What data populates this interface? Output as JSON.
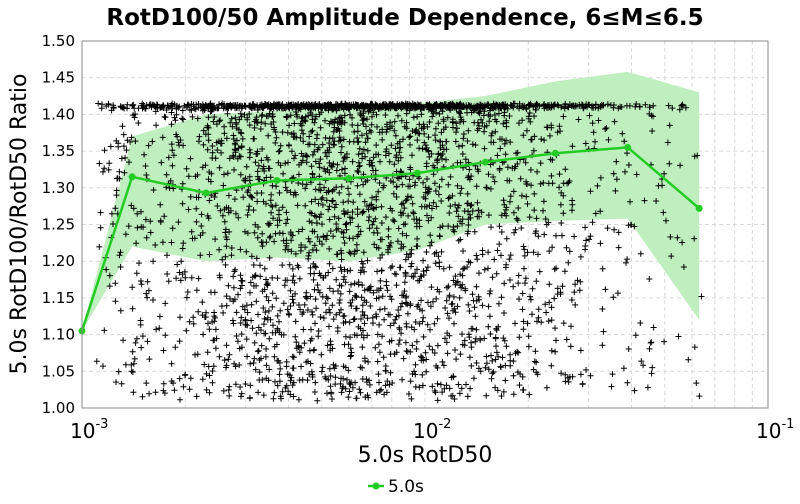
{
  "chart_data": {
    "type": "scatter",
    "title": "RotD100/50 Amplitude Dependence, 6≤M≤6.5",
    "xlabel": "5.0s RotD50",
    "ylabel": "5.0s RotD100/RotD50 Ratio",
    "xscale": "log",
    "xlim": [
      0.001,
      0.1
    ],
    "ylim": [
      1.0,
      1.5
    ],
    "x_ticks": [
      {
        "base": "10",
        "exp": "-3"
      },
      {
        "base": "10",
        "exp": "-2"
      },
      {
        "base": "10",
        "exp": "-1"
      }
    ],
    "y_ticks": [
      "1.00",
      "1.05",
      "1.10",
      "1.15",
      "1.20",
      "1.25",
      "1.30",
      "1.35",
      "1.40",
      "1.45",
      "1.50"
    ],
    "grid": true,
    "legend_position": "bottom-center",
    "scatter_color": "#000000",
    "series": [
      {
        "name": "5.0s",
        "color": "#22cc22",
        "x": [
          0.001,
          0.0014,
          0.0023,
          0.0037,
          0.006,
          0.0095,
          0.015,
          0.024,
          0.039,
          0.063
        ],
        "y": [
          1.105,
          1.315,
          1.293,
          1.31,
          1.313,
          1.32,
          1.335,
          1.347,
          1.355,
          1.272
        ]
      }
    ],
    "band": {
      "color": "#bfeebf",
      "x": [
        0.001,
        0.0014,
        0.0023,
        0.0037,
        0.006,
        0.0095,
        0.015,
        0.024,
        0.039,
        0.063
      ],
      "upper": [
        1.105,
        1.37,
        1.4,
        1.405,
        1.41,
        1.415,
        1.425,
        1.445,
        1.458,
        1.43
      ],
      "lower": [
        1.105,
        1.22,
        1.2,
        1.205,
        1.2,
        1.215,
        1.25,
        1.255,
        1.258,
        1.12
      ]
    },
    "scatter": {
      "x_range": [
        0.0011,
        0.065
      ],
      "y_range": [
        1.01,
        1.415
      ],
      "ceiling": 1.414,
      "count": 3200
    }
  }
}
